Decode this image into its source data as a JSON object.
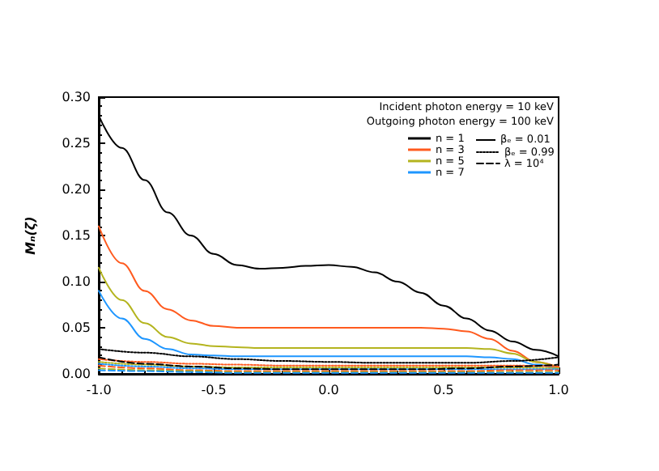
{
  "chart_data": {
    "type": "line",
    "ylabel": "Mₙ(ζ)",
    "annotations": [
      "Incident photon energy = 10 keV",
      "Outgoing photon energy = 100 keV",
      "βₑ = 0.01"
    ],
    "x": [
      -1,
      -0.9,
      -0.8,
      -0.7,
      -0.6,
      -0.5,
      -0.4,
      -0.3,
      -0.2,
      -0.1,
      0,
      0.1,
      0.2,
      0.3,
      0.4,
      0.5,
      0.6,
      0.7,
      0.8,
      0.9,
      1
    ],
    "series": [
      {
        "name": "n = 1",
        "color": "#000000",
        "line_style": "solid",
        "values": [
          0.28,
          0.245,
          0.21,
          0.175,
          0.15,
          0.13,
          0.118,
          0.114,
          0.115,
          0.117,
          0.118,
          0.116,
          0.11,
          0.1,
          0.088,
          0.074,
          0.06,
          0.047,
          0.035,
          0.026,
          0.019
        ]
      },
      {
        "name": "n = 3",
        "color": "#ff5a1e",
        "line_style": "solid",
        "values": [
          0.16,
          0.12,
          0.09,
          0.07,
          0.058,
          0.052,
          0.05,
          0.05,
          0.05,
          0.05,
          0.05,
          0.05,
          0.05,
          0.05,
          0.05,
          0.049,
          0.046,
          0.038,
          0.025,
          0.013,
          0.007
        ]
      },
      {
        "name": "n = 5",
        "color": "#b4b41e",
        "line_style": "solid",
        "values": [
          0.115,
          0.08,
          0.055,
          0.04,
          0.033,
          0.03,
          0.029,
          0.028,
          0.028,
          0.028,
          0.028,
          0.028,
          0.028,
          0.028,
          0.028,
          0.028,
          0.028,
          0.027,
          0.022,
          0.013,
          0.006
        ]
      },
      {
        "name": "n = 7",
        "color": "#1e96ff",
        "line_style": "solid",
        "values": [
          0.09,
          0.06,
          0.038,
          0.027,
          0.021,
          0.02,
          0.019,
          0.019,
          0.019,
          0.019,
          0.019,
          0.019,
          0.019,
          0.019,
          0.019,
          0.019,
          0.019,
          0.018,
          0.016,
          0.01,
          0.005
        ]
      },
      {
        "name": "βₑ = 0.99",
        "color": "#000000",
        "line_style": "dotted",
        "x": [
          -1,
          -0.8,
          -0.6,
          -0.4,
          -0.2,
          0,
          0.2,
          0.4,
          0.6,
          0.8,
          1
        ],
        "values": [
          0.027,
          0.023,
          0.019,
          0.016,
          0.014,
          0.013,
          0.012,
          0.012,
          0.012,
          0.014,
          0.018
        ]
      },
      {
        "color": "#ff5a1e",
        "line_style": "dotted",
        "x": [
          -1,
          -0.8,
          -0.6,
          -0.4,
          -0.2,
          0,
          0.2,
          0.4,
          0.6,
          0.8,
          1
        ],
        "values": [
          0.016,
          0.013,
          0.011,
          0.01,
          0.009,
          0.009,
          0.009,
          0.009,
          0.009,
          0.009,
          0.008
        ]
      },
      {
        "color": "#b4b41e",
        "line_style": "dotted",
        "x": [
          -1,
          -0.8,
          -0.6,
          -0.4,
          -0.2,
          0,
          0.2,
          0.4,
          0.6,
          0.8,
          1
        ],
        "values": [
          0.013,
          0.01,
          0.008,
          0.007,
          0.007,
          0.007,
          0.007,
          0.007,
          0.007,
          0.007,
          0.006
        ]
      },
      {
        "color": "#1e96ff",
        "line_style": "dotted",
        "x": [
          -1,
          -0.8,
          -0.6,
          -0.4,
          -0.2,
          0,
          0.2,
          0.4,
          0.6,
          0.8,
          1
        ],
        "values": [
          0.011,
          0.008,
          0.006,
          0.005,
          0.005,
          0.005,
          0.005,
          0.005,
          0.005,
          0.005,
          0.005
        ]
      },
      {
        "name": "λ = 10⁴",
        "color": "#000000",
        "line_style": "dashed",
        "x": [
          -1,
          -0.8,
          -0.6,
          -0.4,
          -0.2,
          0,
          0.2,
          0.4,
          0.6,
          0.8,
          1
        ],
        "values": [
          0.018,
          0.011,
          0.008,
          0.006,
          0.005,
          0.005,
          0.005,
          0.005,
          0.006,
          0.008,
          0.01
        ]
      },
      {
        "color": "#ff5a1e",
        "line_style": "dashed",
        "x": [
          -1,
          -0.8,
          -0.6,
          -0.4,
          -0.2,
          0,
          0.2,
          0.4,
          0.6,
          0.8,
          1
        ],
        "values": [
          0.009,
          0.006,
          0.004,
          0.003,
          0.003,
          0.003,
          0.003,
          0.003,
          0.003,
          0.004,
          0.004
        ]
      },
      {
        "color": "#b4b41e",
        "line_style": "dashed",
        "x": [
          -1,
          -0.8,
          -0.6,
          -0.4,
          -0.2,
          0,
          0.2,
          0.4,
          0.6,
          0.8,
          1
        ],
        "values": [
          0.006,
          0.004,
          0.003,
          0.002,
          0.002,
          0.002,
          0.002,
          0.002,
          0.002,
          0.002,
          0.002
        ]
      },
      {
        "color": "#1e96ff",
        "line_style": "dashed",
        "x": [
          -1,
          -0.8,
          -0.6,
          -0.4,
          -0.2,
          0,
          0.2,
          0.4,
          0.6,
          0.8,
          1
        ],
        "values": [
          0.004,
          0.003,
          0.002,
          0.001,
          0.001,
          0.001,
          0.001,
          0.001,
          0.001,
          0.001,
          0.001
        ]
      }
    ],
    "xlim": [
      -1,
      1
    ],
    "xticks": [
      {
        "value": -1,
        "label": "-1.0"
      },
      {
        "value": -0.5,
        "label": "-0.5"
      },
      {
        "value": 0,
        "label": "0.0"
      },
      {
        "value": 0.5,
        "label": "0.5"
      },
      {
        "value": 1,
        "label": "1.0"
      }
    ],
    "ylim": [
      0,
      0.3
    ],
    "yticks": [
      {
        "value": 0,
        "label": "0.00"
      },
      {
        "value": 0.05,
        "label": "0.05"
      },
      {
        "value": 0.1,
        "label": "0.10"
      },
      {
        "value": 0.15,
        "label": "0.15"
      },
      {
        "value": 0.2,
        "label": "0.20"
      },
      {
        "value": 0.25,
        "label": "0.25"
      },
      {
        "value": 0.3,
        "label": "0.30"
      }
    ],
    "grid": false,
    "legend": "top right",
    "marker": "none"
  }
}
